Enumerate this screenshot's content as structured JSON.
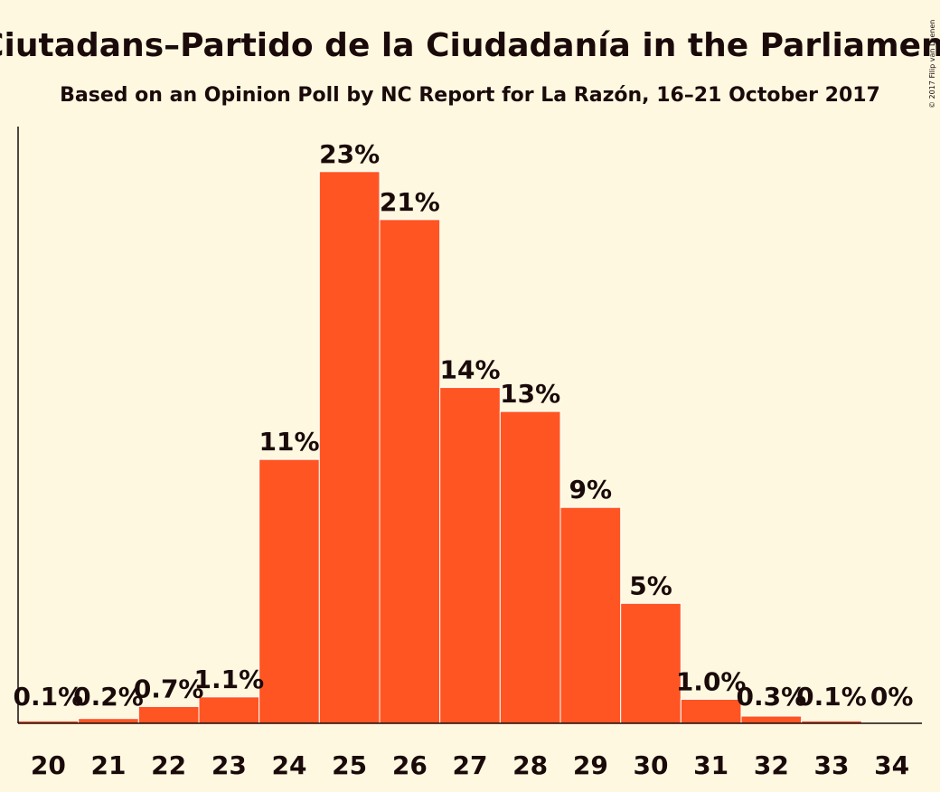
{
  "chart_data": {
    "type": "bar",
    "title": "Ciutadans–Partido de la Ciudadanía in the Parliament",
    "subtitle": "Based on an Opinion Poll by NC Report for La Razón, 16–21 October 2017",
    "copyright": "© 2017 Filip van Laenen",
    "categories": [
      "20",
      "21",
      "22",
      "23",
      "24",
      "25",
      "26",
      "27",
      "28",
      "29",
      "30",
      "31",
      "32",
      "33",
      "34"
    ],
    "values": [
      0.1,
      0.2,
      0.7,
      1.1,
      11,
      23,
      21,
      14,
      13,
      9,
      5,
      1.0,
      0.3,
      0.1,
      0
    ],
    "labels": [
      "0.1%",
      "0.2%",
      "0.7%",
      "1.1%",
      "11%",
      "23%",
      "21%",
      "14%",
      "13%",
      "9%",
      "5%",
      "1.0%",
      "0.3%",
      "0.1%",
      "0%"
    ],
    "ylim": [
      0,
      24.5
    ],
    "grid": false,
    "colors": {
      "bar": "#ff5522",
      "background": "#fff8e0",
      "text": "#1a0a0a"
    }
  }
}
